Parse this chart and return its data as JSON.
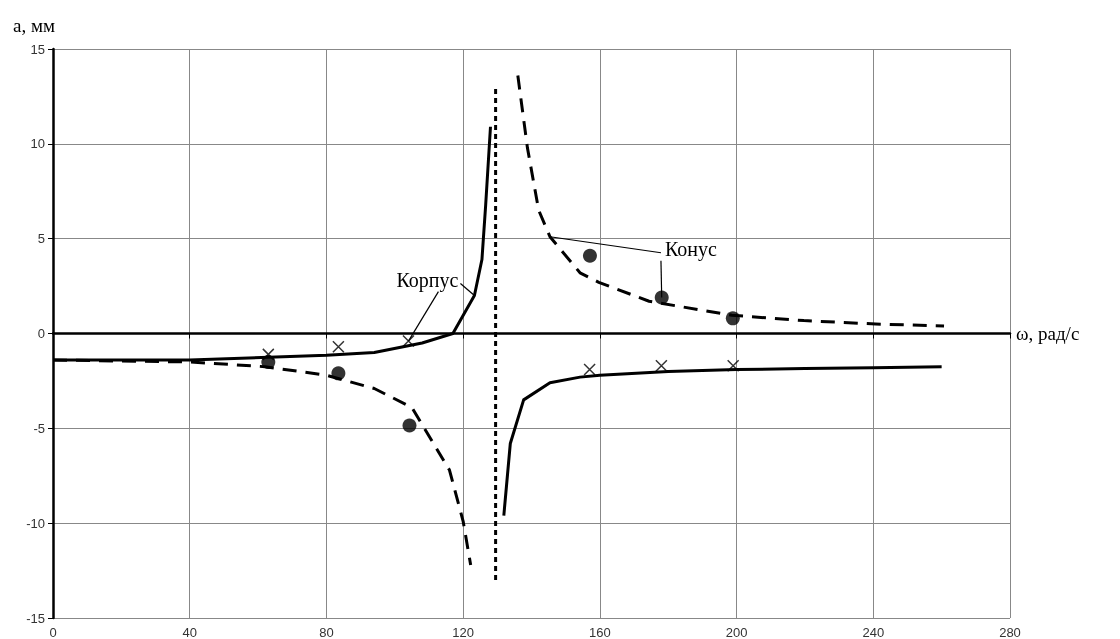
{
  "chart_data": {
    "type": "line",
    "xlabel": "ω, рад/с",
    "ylabel": "a, мм",
    "xlim": [
      0,
      280
    ],
    "xticks": [
      0,
      40,
      80,
      120,
      160,
      200,
      240,
      280
    ],
    "ylim": [
      -15,
      15
    ],
    "yticks": [
      -15,
      -10,
      -5,
      0,
      5,
      10,
      15
    ],
    "grid": true,
    "series": [
      {
        "name": "Корпус",
        "color": "#000000",
        "line_style": "solid",
        "marker": "none",
        "x": [
          0,
          40,
          80,
          94,
          108,
          117,
          123.3,
          125.5,
          126.6,
          128,
          129,
          131.9,
          133.8,
          137.7,
          145.4,
          154.2,
          160,
          180,
          200,
          220,
          240,
          260
        ],
        "values": [
          -1.4,
          -1.4,
          -1.15,
          -1.0,
          -0.5,
          0,
          2.0,
          3.9,
          6.8,
          10.9,
          null,
          -9.6,
          -5.8,
          -3.5,
          -2.6,
          -2.3,
          -2.2,
          -2.0,
          -1.9,
          -1.85,
          -1.8,
          -1.75
        ]
      },
      {
        "name": "Конус",
        "color": "#000000",
        "line_style": "dashed",
        "marker": "none",
        "x": [
          0,
          40,
          62,
          80,
          94,
          105,
          116,
          120,
          122.2,
          129,
          136,
          138.8,
          142.1,
          145.4,
          154.2,
          159.7,
          174.4,
          198.6,
          219.7,
          240.7,
          260.7
        ],
        "values": [
          -1.4,
          -1.5,
          -1.75,
          -2.2,
          -2.9,
          -3.9,
          -7.2,
          -9.9,
          -12.2,
          null,
          13.6,
          9.8,
          6.5,
          5.1,
          3.2,
          2.7,
          1.7,
          0.96,
          0.68,
          0.5,
          0.4
        ]
      },
      {
        "type": "line",
        "color": "#000000",
        "line_style": "dotted",
        "marker": "none",
        "x": [
          129.5,
          129.5
        ],
        "values": [
          -13,
          13
        ]
      },
      {
        "type": "scatter",
        "color": "#000000",
        "marker": "cross",
        "x": [
          63,
          83.5,
          104,
          157,
          178,
          199
        ],
        "values": [
          -1.1,
          -0.7,
          -0.4,
          -1.9,
          -1.7,
          -1.7
        ]
      },
      {
        "type": "scatter",
        "color": "#000000",
        "marker": "circle",
        "x": [
          63,
          83.5,
          104.3,
          157.1,
          178.1,
          198.9
        ],
        "values": [
          -1.5,
          -2.1,
          -4.85,
          4.1,
          1.9,
          0.8
        ]
      }
    ]
  }
}
